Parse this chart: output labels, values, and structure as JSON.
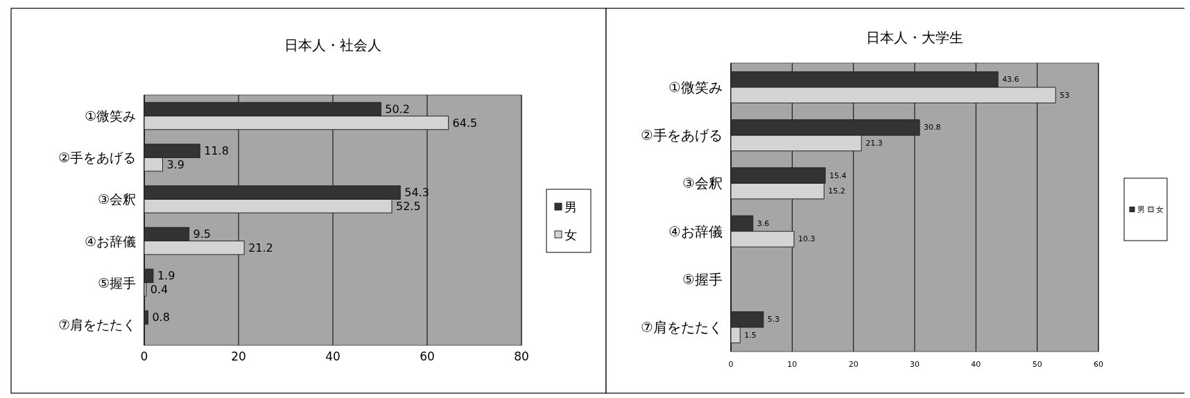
{
  "chart_data": [
    {
      "type": "bar",
      "orientation": "horizontal",
      "title": "日本人・社会人",
      "categories": [
        "①微笑み",
        "②手をあげる",
        "③会釈",
        "④お辞儀",
        "⑤握手",
        "⑦肩をたたく"
      ],
      "series": [
        {
          "name": "男",
          "color": "#333333",
          "values": [
            50.2,
            11.8,
            54.3,
            9.5,
            1.9,
            0.8
          ]
        },
        {
          "name": "女",
          "color": "#d4d4d4",
          "values": [
            64.5,
            3.9,
            52.5,
            21.2,
            0.4,
            null
          ]
        }
      ],
      "xlim": [
        0,
        80
      ],
      "xticks": [
        0,
        20,
        40,
        60,
        80
      ],
      "grid": "x",
      "legend": "right",
      "data_labels": true
    },
    {
      "type": "bar",
      "orientation": "horizontal",
      "title": "日本人・大学生",
      "categories": [
        "①微笑み",
        "②手をあげる",
        "③会釈",
        "④お辞儀",
        "⑤握手",
        "⑦肩をたたく"
      ],
      "series": [
        {
          "name": "男",
          "color": "#333333",
          "values": [
            43.6,
            30.8,
            15.4,
            3.6,
            null,
            5.3
          ]
        },
        {
          "name": "女",
          "color": "#d4d4d4",
          "values": [
            53,
            21.3,
            15.2,
            10.3,
            null,
            1.5
          ]
        }
      ],
      "xlim": [
        0,
        60
      ],
      "xticks": [
        0,
        10,
        20,
        30,
        40,
        50,
        60
      ],
      "grid": "x",
      "legend": "right",
      "data_labels": true
    }
  ]
}
